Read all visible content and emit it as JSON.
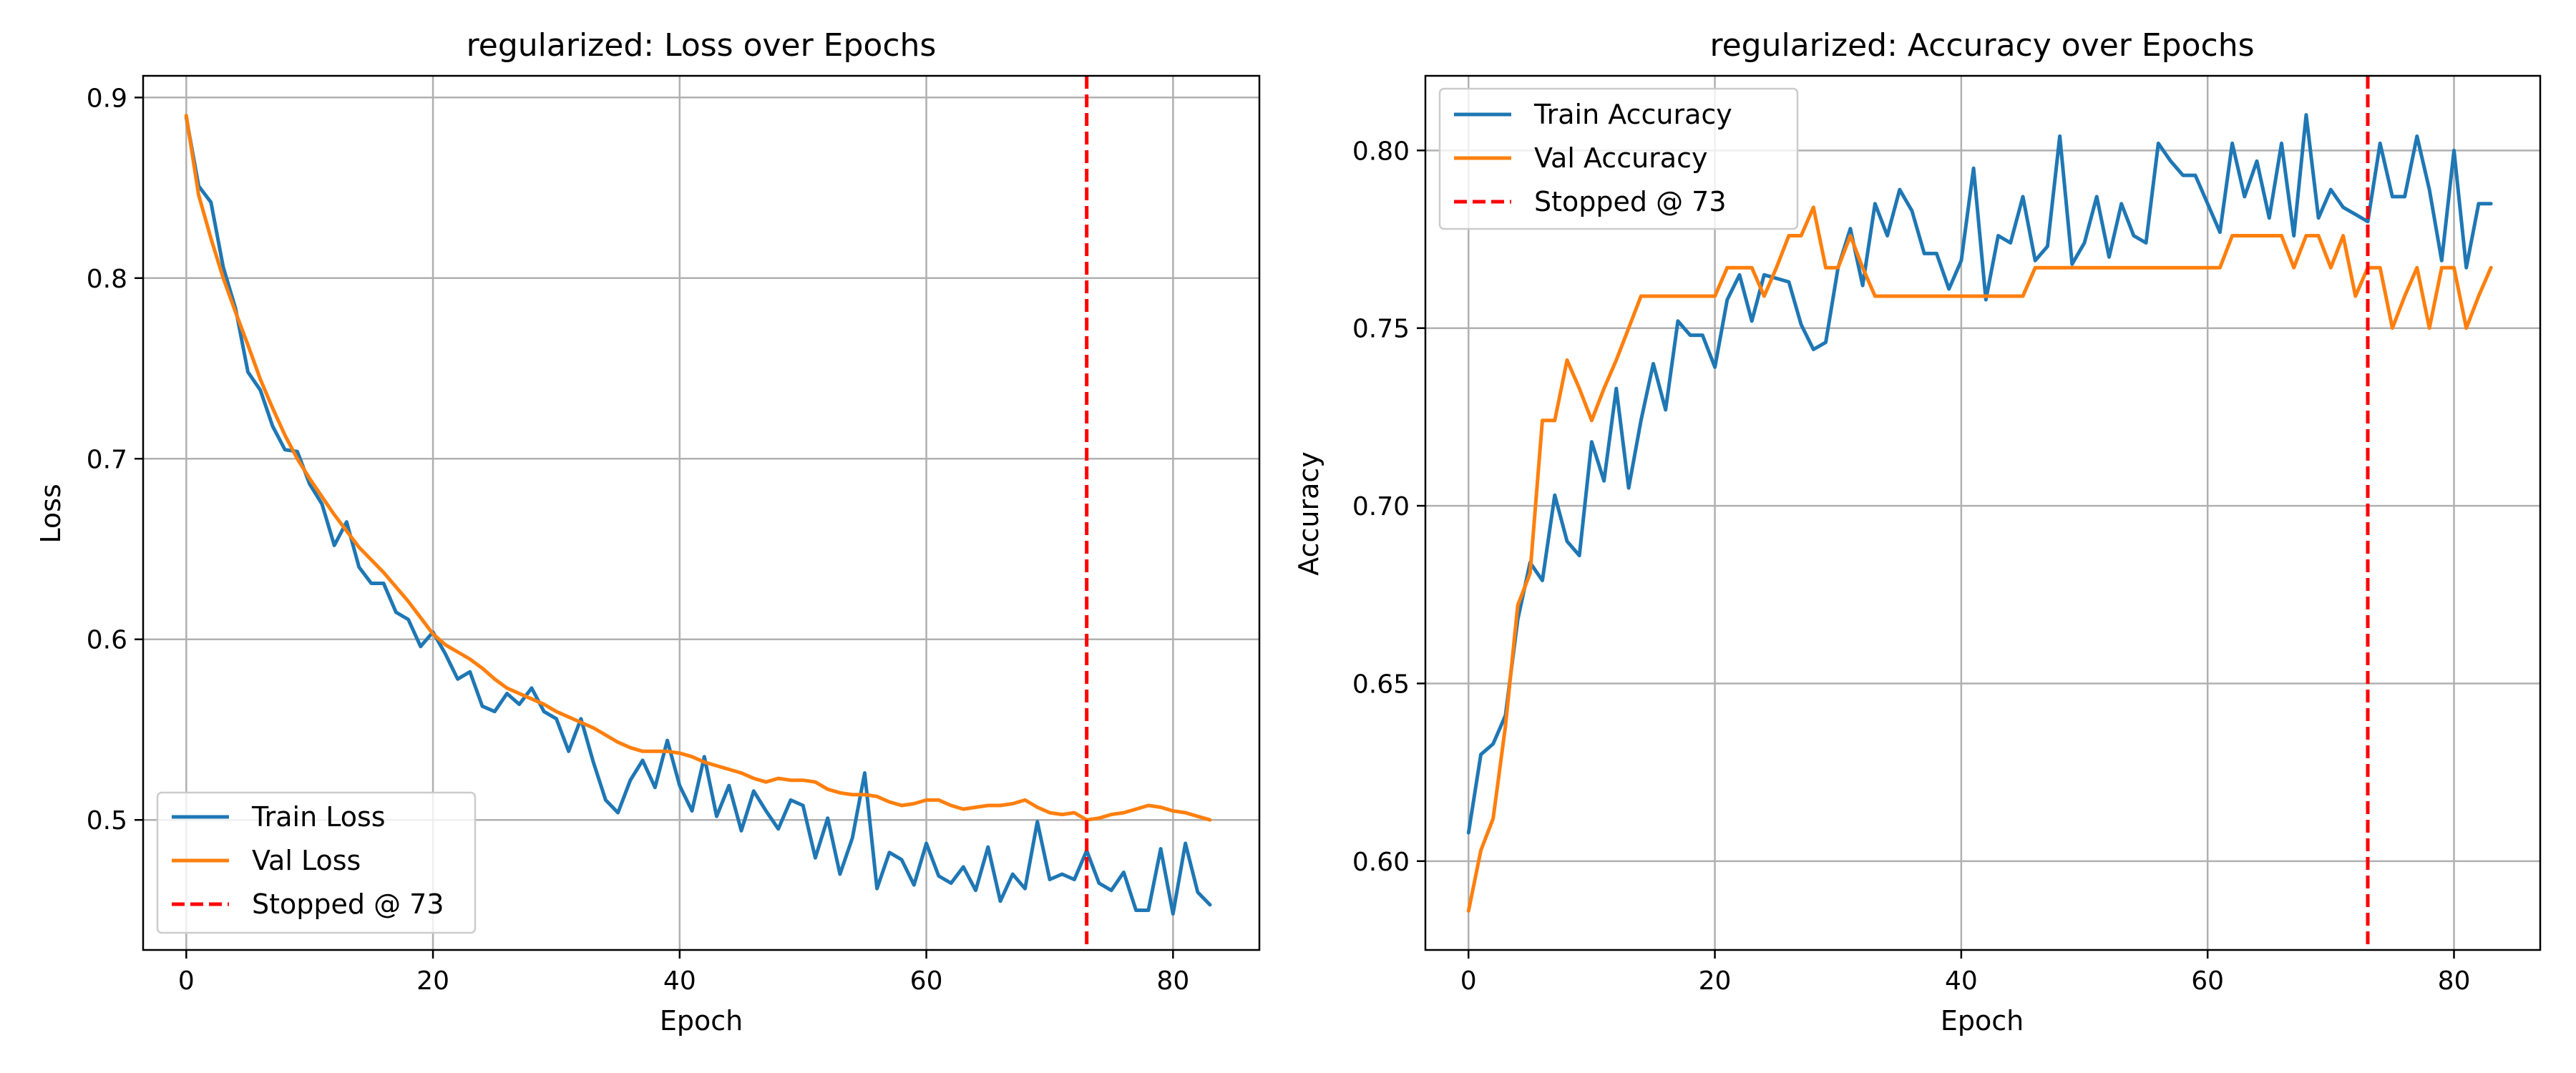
{
  "chart_data": [
    {
      "type": "line",
      "title": "regularized: Loss over Epochs",
      "xlabel": "Epoch",
      "ylabel": "Loss",
      "xlim": [
        -3.5,
        87
      ],
      "ylim": [
        0.428,
        0.912
      ],
      "xticks": [
        0,
        20,
        40,
        60,
        80
      ],
      "yticks": [
        0.5,
        0.6,
        0.7,
        0.8,
        0.9
      ],
      "ytick_decimals": 1,
      "grid": true,
      "legend_position": "lower-left",
      "stop_epoch": 73,
      "stop_label": "Stopped @ 73",
      "stop_color": "#ff0000",
      "series": [
        {
          "name": "Train Loss",
          "color": "#1f77b4",
          "values": [
            0.889,
            0.851,
            0.842,
            0.806,
            0.783,
            0.748,
            0.738,
            0.718,
            0.705,
            0.704,
            0.686,
            0.675,
            0.652,
            0.665,
            0.64,
            0.631,
            0.631,
            0.615,
            0.611,
            0.596,
            0.604,
            0.592,
            0.578,
            0.582,
            0.563,
            0.56,
            0.57,
            0.564,
            0.573,
            0.56,
            0.556,
            0.538,
            0.556,
            0.532,
            0.511,
            0.504,
            0.522,
            0.533,
            0.518,
            0.544,
            0.519,
            0.505,
            0.535,
            0.502,
            0.519,
            0.494,
            0.516,
            0.505,
            0.495,
            0.511,
            0.508,
            0.479,
            0.501,
            0.47,
            0.49,
            0.526,
            0.462,
            0.482,
            0.478,
            0.464,
            0.487,
            0.469,
            0.465,
            0.474,
            0.461,
            0.485,
            0.455,
            0.47,
            0.462,
            0.499,
            0.467,
            0.47,
            0.467,
            0.483,
            0.465,
            0.461,
            0.471,
            0.45,
            0.45,
            0.484,
            0.448,
            0.487,
            0.46,
            0.453
          ]
        },
        {
          "name": "Val Loss",
          "color": "#ff7f0e",
          "values": [
            0.89,
            0.846,
            0.822,
            0.8,
            0.781,
            0.763,
            0.744,
            0.728,
            0.713,
            0.7,
            0.689,
            0.679,
            0.669,
            0.66,
            0.651,
            0.644,
            0.637,
            0.629,
            0.621,
            0.612,
            0.603,
            0.597,
            0.593,
            0.589,
            0.584,
            0.578,
            0.573,
            0.57,
            0.567,
            0.564,
            0.56,
            0.557,
            0.554,
            0.551,
            0.547,
            0.543,
            0.54,
            0.538,
            0.538,
            0.538,
            0.537,
            0.535,
            0.532,
            0.53,
            0.528,
            0.526,
            0.523,
            0.521,
            0.523,
            0.522,
            0.522,
            0.521,
            0.517,
            0.515,
            0.514,
            0.514,
            0.513,
            0.51,
            0.508,
            0.509,
            0.511,
            0.511,
            0.508,
            0.506,
            0.507,
            0.508,
            0.508,
            0.509,
            0.511,
            0.507,
            0.504,
            0.503,
            0.504,
            0.5,
            0.501,
            0.503,
            0.504,
            0.506,
            0.508,
            0.507,
            0.505,
            0.504,
            0.502,
            0.5
          ]
        }
      ]
    },
    {
      "type": "line",
      "title": "regularized: Accuracy over Epochs",
      "xlabel": "Epoch",
      "ylabel": "Accuracy",
      "xlim": [
        -3.5,
        87
      ],
      "ylim": [
        0.575,
        0.821
      ],
      "xticks": [
        0,
        20,
        40,
        60,
        80
      ],
      "yticks": [
        0.6,
        0.65,
        0.7,
        0.75,
        0.8
      ],
      "ytick_decimals": 2,
      "grid": true,
      "legend_position": "top-left",
      "stop_epoch": 73,
      "stop_label": "Stopped @ 73",
      "stop_color": "#ff0000",
      "series": [
        {
          "name": "Train Accuracy",
          "color": "#1f77b4",
          "values": [
            0.608,
            0.63,
            0.633,
            0.641,
            0.668,
            0.684,
            0.679,
            0.703,
            0.69,
            0.686,
            0.718,
            0.707,
            0.733,
            0.705,
            0.724,
            0.74,
            0.727,
            0.752,
            0.748,
            0.748,
            0.739,
            0.758,
            0.765,
            0.752,
            0.765,
            0.764,
            0.763,
            0.751,
            0.744,
            0.746,
            0.767,
            0.778,
            0.762,
            0.785,
            0.776,
            0.789,
            0.783,
            0.771,
            0.771,
            0.761,
            0.769,
            0.795,
            0.758,
            0.776,
            0.774,
            0.787,
            0.769,
            0.773,
            0.804,
            0.768,
            0.774,
            0.787,
            0.77,
            0.785,
            0.776,
            0.774,
            0.802,
            0.797,
            0.793,
            0.793,
            0.785,
            0.777,
            0.802,
            0.787,
            0.797,
            0.781,
            0.802,
            0.776,
            0.81,
            0.781,
            0.789,
            0.784,
            0.782,
            0.78,
            0.802,
            0.787,
            0.787,
            0.804,
            0.789,
            0.769,
            0.8,
            0.767,
            0.785,
            0.785
          ]
        },
        {
          "name": "Val Accuracy",
          "color": "#ff7f0e",
          "values": [
            0.586,
            0.603,
            0.612,
            0.638,
            0.672,
            0.681,
            0.724,
            0.724,
            0.741,
            0.733,
            0.724,
            0.733,
            0.741,
            0.75,
            0.759,
            0.759,
            0.759,
            0.759,
            0.759,
            0.759,
            0.759,
            0.767,
            0.767,
            0.767,
            0.759,
            0.767,
            0.776,
            0.776,
            0.784,
            0.767,
            0.767,
            0.776,
            0.767,
            0.759,
            0.759,
            0.759,
            0.759,
            0.759,
            0.759,
            0.759,
            0.759,
            0.759,
            0.759,
            0.759,
            0.759,
            0.759,
            0.767,
            0.767,
            0.767,
            0.767,
            0.767,
            0.767,
            0.767,
            0.767,
            0.767,
            0.767,
            0.767,
            0.767,
            0.767,
            0.767,
            0.767,
            0.767,
            0.776,
            0.776,
            0.776,
            0.776,
            0.776,
            0.767,
            0.776,
            0.776,
            0.767,
            0.776,
            0.759,
            0.767,
            0.767,
            0.75,
            0.759,
            0.767,
            0.75,
            0.767,
            0.767,
            0.75,
            0.759,
            0.767
          ]
        }
      ]
    }
  ]
}
